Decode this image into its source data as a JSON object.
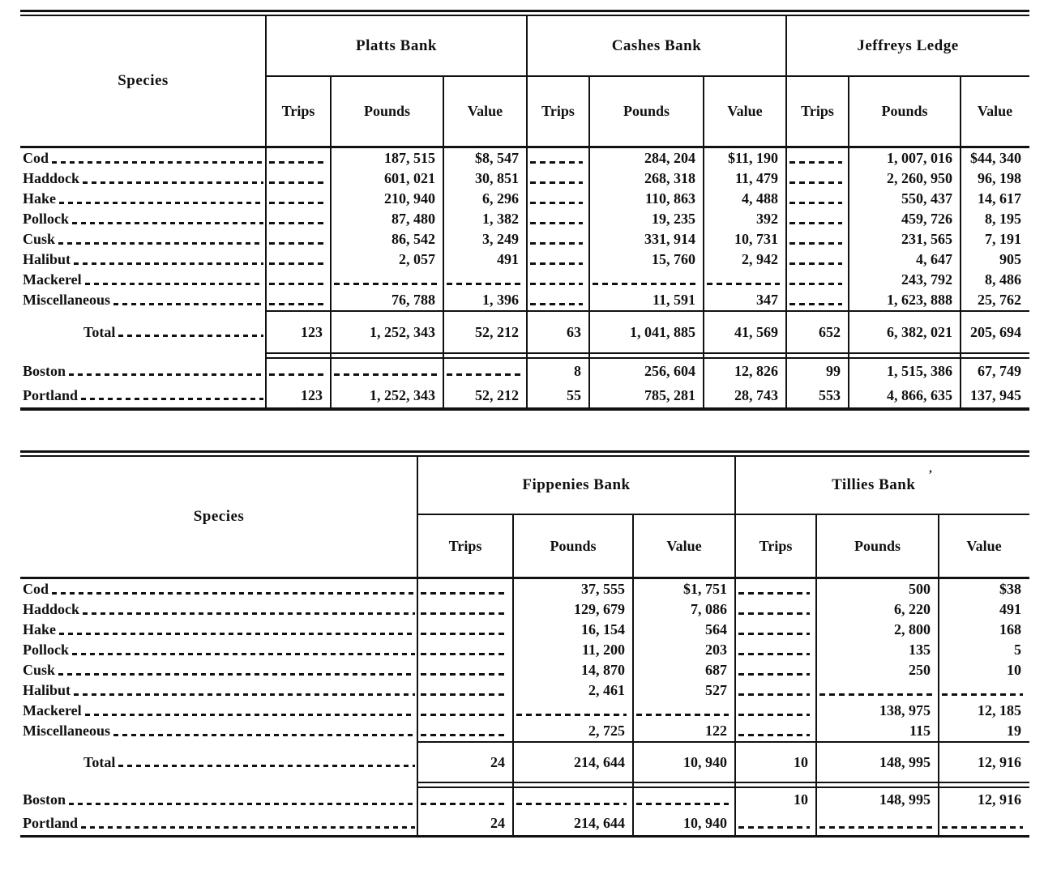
{
  "document": {
    "background": "#ffffff",
    "ink": "#111111"
  },
  "table1": {
    "species_header": "Species",
    "banks": [
      "Platts Bank",
      "Cashes Bank",
      "Jeffreys Ledge"
    ],
    "col_headers": [
      "Trips",
      "Pounds",
      "Value"
    ],
    "species_rows": [
      {
        "kind": "species",
        "label": "Cod",
        "cells": [
          null,
          "187, 515",
          "$8, 547",
          null,
          "284, 204",
          "$11, 190",
          null,
          "1, 007, 016",
          "$44, 340"
        ]
      },
      {
        "kind": "species",
        "label": "Haddock",
        "cells": [
          null,
          "601, 021",
          "30, 851",
          null,
          "268, 318",
          "11, 479",
          null,
          "2, 260, 950",
          "96, 198"
        ]
      },
      {
        "kind": "species",
        "label": "Hake",
        "cells": [
          null,
          "210, 940",
          "6, 296",
          null,
          "110, 863",
          "4, 488",
          null,
          "550, 437",
          "14, 617"
        ]
      },
      {
        "kind": "species",
        "label": "Pollock",
        "cells": [
          null,
          "87, 480",
          "1, 382",
          null,
          "19, 235",
          "392",
          null,
          "459, 726",
          "8, 195"
        ]
      },
      {
        "kind": "species",
        "label": "Cusk",
        "cells": [
          null,
          "86, 542",
          "3, 249",
          null,
          "331, 914",
          "10, 731",
          null,
          "231, 565",
          "7, 191"
        ]
      },
      {
        "kind": "species",
        "label": "Halibut",
        "cells": [
          null,
          "2, 057",
          "491",
          null,
          "15, 760",
          "2, 942",
          null,
          "4, 647",
          "905"
        ]
      },
      {
        "kind": "species",
        "label": "Mackerel",
        "cells": [
          null,
          null,
          null,
          null,
          null,
          null,
          null,
          "243, 792",
          "8, 486"
        ]
      },
      {
        "kind": "species",
        "label": "Miscellaneous",
        "cells": [
          null,
          "76, 788",
          "1, 396",
          null,
          "11, 591",
          "347",
          null,
          "1, 623, 888",
          "25, 762"
        ]
      }
    ],
    "total_rows": [
      {
        "kind": "total",
        "label": "Total",
        "cells": [
          "123",
          "1, 252, 343",
          "52, 212",
          "63",
          "1, 041, 885",
          "41, 569",
          "652",
          "6, 382, 021",
          "205, 694"
        ]
      }
    ],
    "city_rows": [
      {
        "kind": "city",
        "label": "Boston",
        "cells": [
          null,
          null,
          null,
          "8",
          "256, 604",
          "12, 826",
          "99",
          "1, 515, 386",
          "67, 749"
        ]
      },
      {
        "kind": "city",
        "label": "Portland",
        "cells": [
          "123",
          "1, 252, 343",
          "52, 212",
          "55",
          "785, 281",
          "28, 743",
          "553",
          "4, 866, 635",
          "137, 945"
        ]
      }
    ]
  },
  "table2": {
    "species_header": "Species",
    "banks": [
      "Fippenies Bank",
      "Tillies Bank"
    ],
    "stray_mark": "’",
    "col_headers": [
      "Trips",
      "Pounds",
      "Value"
    ],
    "species_rows": [
      {
        "kind": "species",
        "label": "Cod",
        "cells": [
          null,
          "37, 555",
          "$1, 751",
          null,
          "500",
          "$38"
        ]
      },
      {
        "kind": "species",
        "label": "Haddock",
        "cells": [
          null,
          "129, 679",
          "7, 086",
          null,
          "6, 220",
          "491"
        ]
      },
      {
        "kind": "species",
        "label": "Hake",
        "cells": [
          null,
          "16, 154",
          "564",
          null,
          "2, 800",
          "168"
        ]
      },
      {
        "kind": "species",
        "label": "Pollock",
        "cells": [
          null,
          "11, 200",
          "203",
          null,
          "135",
          "5"
        ]
      },
      {
        "kind": "species",
        "label": "Cusk",
        "cells": [
          null,
          "14, 870",
          "687",
          null,
          "250",
          "10"
        ]
      },
      {
        "kind": "species",
        "label": "Halibut",
        "cells": [
          null,
          "2, 461",
          "527",
          null,
          null,
          null
        ]
      },
      {
        "kind": "species",
        "label": "Mackerel",
        "cells": [
          null,
          null,
          null,
          null,
          "138, 975",
          "12, 185"
        ]
      },
      {
        "kind": "species",
        "label": "Miscellaneous",
        "cells": [
          null,
          "2, 725",
          "122",
          null,
          "115",
          "19"
        ]
      }
    ],
    "total_rows": [
      {
        "kind": "total",
        "label": "Total",
        "cells": [
          "24",
          "214, 644",
          "10, 940",
          "10",
          "148, 995",
          "12, 916"
        ]
      }
    ],
    "city_rows": [
      {
        "kind": "city",
        "label": "Boston",
        "cells": [
          null,
          null,
          null,
          "10",
          "148, 995",
          "12, 916"
        ]
      },
      {
        "kind": "city",
        "label": "Portland",
        "cells": [
          "24",
          "214, 644",
          "10, 940",
          null,
          null,
          null
        ]
      }
    ]
  }
}
